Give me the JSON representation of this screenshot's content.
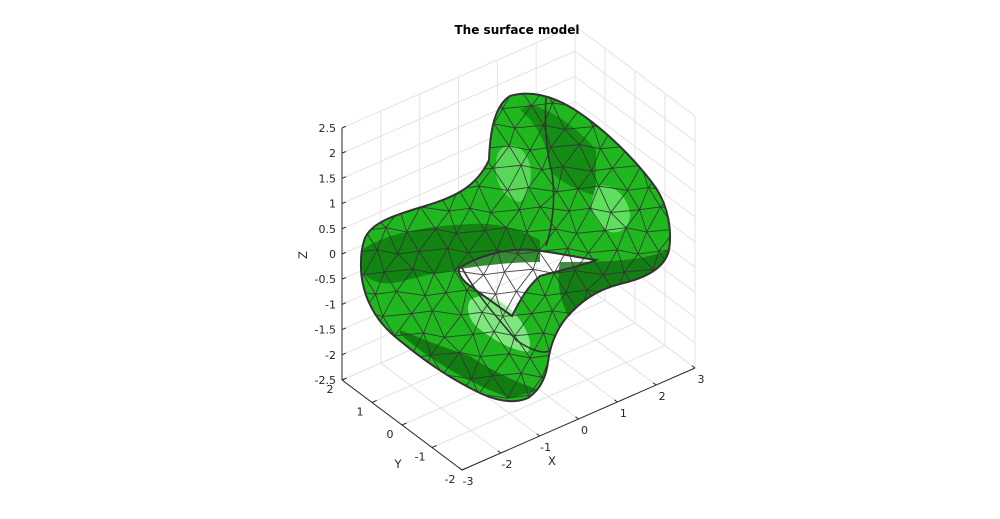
{
  "chart_data": {
    "type": "surface-3d",
    "title": "The surface model",
    "xlabel": "X",
    "ylabel": "Y",
    "zlabel": "Z",
    "xlim": [
      -3,
      3
    ],
    "ylim": [
      -2,
      2
    ],
    "zlim": [
      -2.5,
      2.5
    ],
    "x_ticks": [
      "-3",
      "-2",
      "-1",
      "0",
      "1",
      "2",
      "3"
    ],
    "y_ticks": [
      "-2",
      "-1",
      "0",
      "1",
      "2"
    ],
    "z_ticks": [
      "2.5",
      "2",
      "1.5",
      "1",
      "0.5",
      "0",
      "-0.5",
      "-1",
      "-1.5",
      "-2",
      "-2.5"
    ],
    "grid": true,
    "face_color": "#22cc22",
    "edge_color": "#333333",
    "shading": "flat-lit"
  }
}
